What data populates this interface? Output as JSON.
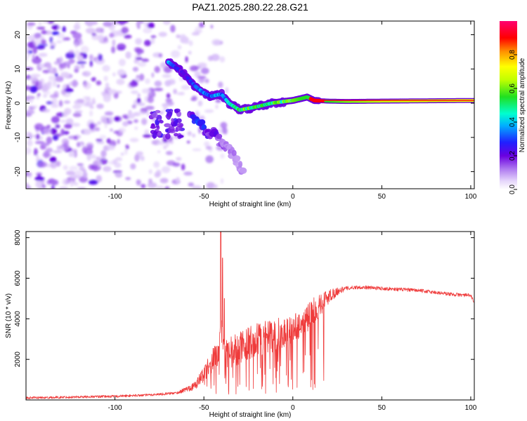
{
  "chart_data": [
    {
      "type": "heatmap",
      "title": "PAZ1.2025.280.22.28.G21",
      "xlabel": "Height of straight line (km)",
      "ylabel": "Frequency (Hz)",
      "xlim": [
        -150,
        102
      ],
      "ylim": [
        -25,
        24
      ],
      "xticks": [
        -100,
        -50,
        0,
        50,
        100
      ],
      "yticks": [
        -20,
        -10,
        0,
        10,
        20
      ],
      "colorbar": {
        "label": "Normalized spectral amplitude",
        "range": [
          0.0,
          1.0
        ],
        "ticks": [
          "0.0",
          "0.2",
          "0.4",
          "0.6",
          "0.8"
        ],
        "tick_values": [
          0.0,
          0.2,
          0.4,
          0.6,
          0.8
        ]
      },
      "ridge": {
        "x": [
          -70,
          -62,
          -55,
          -50,
          -46,
          -42,
          -40,
          -36,
          -30,
          -25,
          -20,
          -12,
          -5,
          0,
          5,
          8,
          12,
          20,
          30,
          50,
          102
        ],
        "y": [
          12,
          9,
          5,
          3,
          2,
          2.5,
          2.6,
          0,
          -2,
          -1.5,
          -1,
          0,
          0.5,
          0.8,
          1.4,
          1.8,
          0.8,
          0.6,
          0.5,
          0.6,
          0.8
        ],
        "amplitude": [
          0.35,
          0.2,
          0.3,
          0.35,
          0.3,
          0.4,
          0.3,
          0.45,
          0.5,
          0.55,
          0.5,
          0.5,
          0.55,
          0.6,
          0.55,
          0.55,
          0.5,
          0.55,
          0.6,
          0.65,
          0.7
        ],
        "peak_x": [
          10,
          18
        ],
        "peak_y": 0.8
      },
      "lower_branch": {
        "x": [
          -58,
          -52,
          -46,
          -44,
          -40,
          -35,
          -30,
          -28
        ],
        "y": [
          -4,
          -6,
          -10,
          -8,
          -12,
          -14,
          -18,
          -20
        ],
        "amplitude": [
          0.2,
          0.3,
          0.15,
          0.2,
          0.15,
          0.12,
          0.12,
          0.1
        ]
      },
      "noise_region": {
        "x": [
          -150,
          -60
        ],
        "y": [
          -25,
          24
        ]
      }
    },
    {
      "type": "line",
      "xlabel": "Height of straight line (km)",
      "ylabel": "SNR (10 * v/v)",
      "xlim": [
        -150,
        102
      ],
      "ylim": [
        0,
        8300
      ],
      "xticks": [
        -100,
        -50,
        0,
        50,
        100
      ],
      "yticks": [
        2000,
        4000,
        6000,
        8000
      ],
      "color": "#ef3b3b",
      "envelope": {
        "x": [
          -150,
          -100,
          -80,
          -65,
          -55,
          -50,
          -45,
          -42,
          -40,
          -38,
          -35,
          -30,
          -25,
          -20,
          -15,
          -10,
          -5,
          0,
          5,
          10,
          15,
          20,
          25,
          30,
          35,
          40,
          50,
          60,
          70,
          80,
          90,
          100,
          102
        ],
        "y": [
          100,
          180,
          250,
          350,
          700,
          1300,
          2000,
          2200,
          3500,
          2000,
          2200,
          2600,
          2800,
          2900,
          3000,
          3200,
          3300,
          3500,
          3800,
          4200,
          4700,
          5100,
          5350,
          5500,
          5550,
          5550,
          5500,
          5450,
          5400,
          5300,
          5200,
          5150,
          4800
        ],
        "noise": [
          60,
          60,
          60,
          60,
          200,
          400,
          600,
          700,
          800,
          900,
          900,
          800,
          800,
          900,
          900,
          800,
          800,
          700,
          700,
          700,
          600,
          400,
          200,
          100,
          90,
          90,
          90,
          90,
          90,
          90,
          90,
          90,
          90
        ]
      },
      "spikes": [
        {
          "x": -40.5,
          "y": 8300
        },
        {
          "x": -39.5,
          "y": 7000
        },
        {
          "x": -38.5,
          "y": 5000
        }
      ]
    }
  ]
}
